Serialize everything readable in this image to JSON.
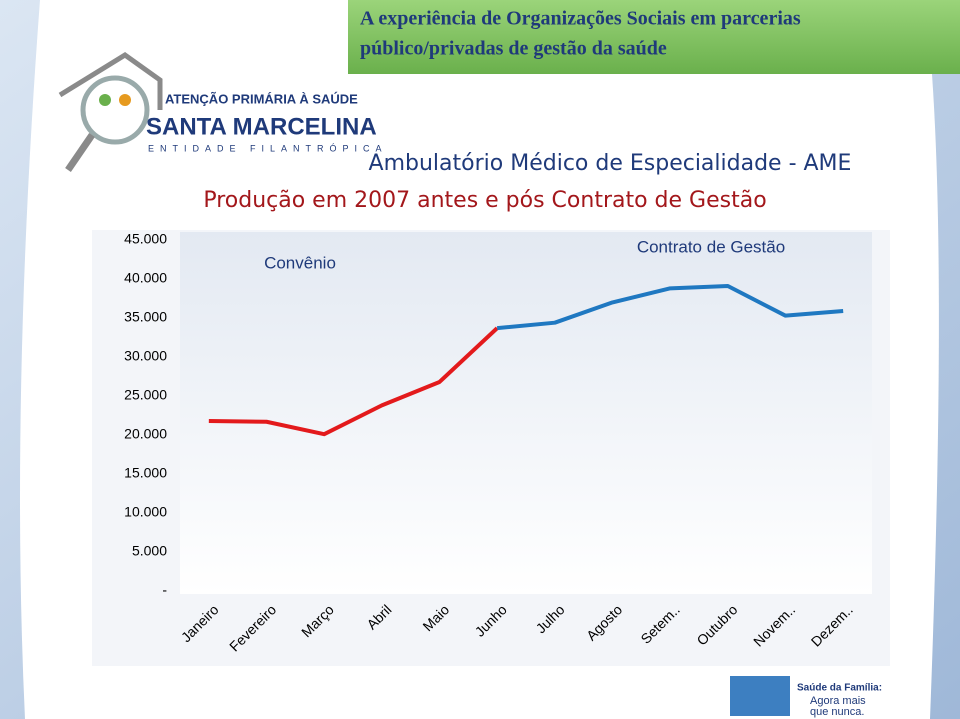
{
  "header": {
    "title_lines": [
      "A experiência de Organizações Sociais em parcerias",
      "público/privadas de gestão da saúde"
    ]
  },
  "logo": {
    "line1": "ATENÇÃO PRIMÁRIA À SAÚDE",
    "line2": "SANTA MARCELINA",
    "line3": "ENTIDADE FILANTRÓPICA"
  },
  "footer": {
    "line1": "Saúde da Família:",
    "line2": "Agora mais",
    "line3": "que nunca."
  },
  "chart_data": {
    "type": "line",
    "title": "Ambulatório Médico de Especialidade - AME",
    "subtitle": "Produção em 2007 antes e pós Contrato de Gestão",
    "categories": [
      "Janeiro",
      "Fevereiro",
      "Março",
      "Abril",
      "Maio",
      "Junho",
      "Julho",
      "Agosto",
      "Setem..",
      "Outubro",
      "Novem..",
      "Dezem.."
    ],
    "series": [
      {
        "name": "Convênio",
        "color": "#e31a1c",
        "values": [
          21800,
          21700,
          20100,
          23800,
          26800,
          33700,
          null,
          null,
          null,
          null,
          null,
          null
        ]
      },
      {
        "name": "Contrato de Gestão",
        "color": "#1f78c1",
        "values": [
          null,
          null,
          null,
          null,
          null,
          33700,
          34400,
          37000,
          38800,
          39100,
          35300,
          35900
        ]
      }
    ],
    "ylim": [
      0,
      45000
    ],
    "yticks": [
      {
        "value": 0,
        "label": "-"
      },
      {
        "value": 5000,
        "label": "5.000"
      },
      {
        "value": 10000,
        "label": "10.000"
      },
      {
        "value": 15000,
        "label": "15.000"
      },
      {
        "value": 20000,
        "label": "20.000"
      },
      {
        "value": 25000,
        "label": "25.000"
      },
      {
        "value": 30000,
        "label": "30.000"
      },
      {
        "value": 35000,
        "label": "35.000"
      },
      {
        "value": 40000,
        "label": "40.000"
      },
      {
        "value": 45000,
        "label": "45.000"
      }
    ],
    "grid": false
  }
}
